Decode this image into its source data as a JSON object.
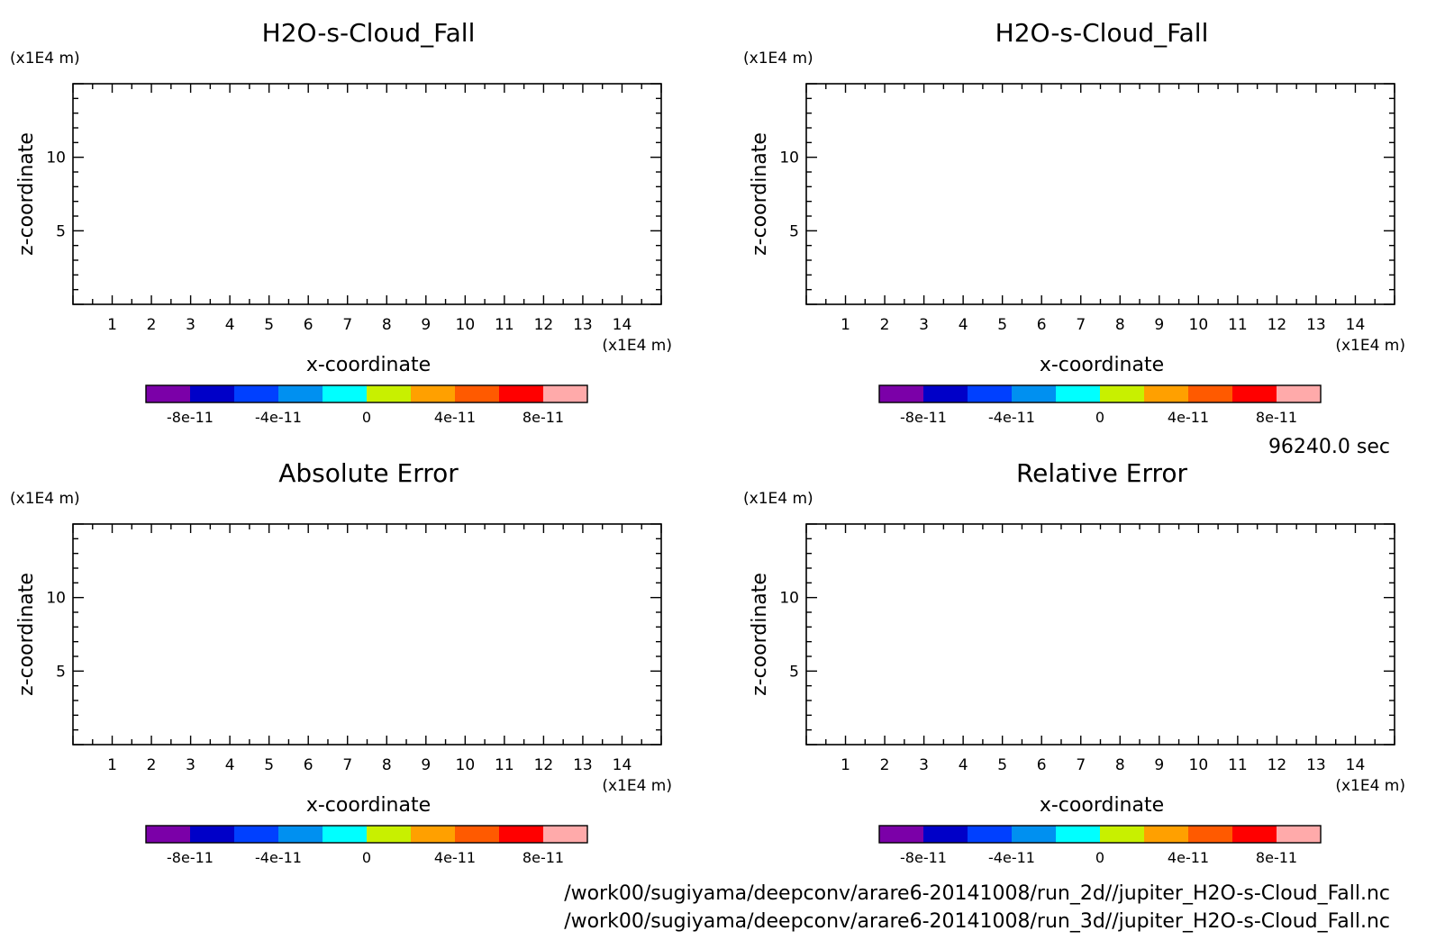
{
  "chart_data": [
    {
      "type": "heatmap",
      "title": "H2O-s-Cloud_Fall",
      "xlabel": "x-coordinate",
      "ylabel": "z-coordinate",
      "x_unit": "(x1E4 m)",
      "y_unit": "(x1E4 m)",
      "xlim": [
        0,
        15
      ],
      "ylim": [
        0,
        15
      ],
      "x_ticks": [
        "1",
        "2",
        "3",
        "4",
        "5",
        "6",
        "7",
        "8",
        "9",
        "10",
        "11",
        "12",
        "13",
        "14"
      ],
      "y_ticks": [
        "5",
        "10"
      ],
      "colorbar_ticks": [
        "-8e-11",
        "-4e-11",
        "0",
        "4e-11",
        "8e-11"
      ],
      "values": []
    },
    {
      "type": "heatmap",
      "title": "H2O-s-Cloud_Fall",
      "xlabel": "x-coordinate",
      "ylabel": "z-coordinate",
      "x_unit": "(x1E4 m)",
      "y_unit": "(x1E4 m)",
      "xlim": [
        0,
        15
      ],
      "ylim": [
        0,
        15
      ],
      "x_ticks": [
        "1",
        "2",
        "3",
        "4",
        "5",
        "6",
        "7",
        "8",
        "9",
        "10",
        "11",
        "12",
        "13",
        "14"
      ],
      "y_ticks": [
        "5",
        "10"
      ],
      "colorbar_ticks": [
        "-8e-11",
        "-4e-11",
        "0",
        "4e-11",
        "8e-11"
      ],
      "values": []
    },
    {
      "type": "heatmap",
      "title": "Absolute Error",
      "xlabel": "x-coordinate",
      "ylabel": "z-coordinate",
      "x_unit": "(x1E4 m)",
      "y_unit": "(x1E4 m)",
      "xlim": [
        0,
        15
      ],
      "ylim": [
        0,
        15
      ],
      "x_ticks": [
        "1",
        "2",
        "3",
        "4",
        "5",
        "6",
        "7",
        "8",
        "9",
        "10",
        "11",
        "12",
        "13",
        "14"
      ],
      "y_ticks": [
        "5",
        "10"
      ],
      "colorbar_ticks": [
        "-8e-11",
        "-4e-11",
        "0",
        "4e-11",
        "8e-11"
      ],
      "values": []
    },
    {
      "type": "heatmap",
      "title": "Relative Error",
      "xlabel": "x-coordinate",
      "ylabel": "z-coordinate",
      "x_unit": "(x1E4 m)",
      "y_unit": "(x1E4 m)",
      "xlim": [
        0,
        15
      ],
      "ylim": [
        0,
        15
      ],
      "x_ticks": [
        "1",
        "2",
        "3",
        "4",
        "5",
        "6",
        "7",
        "8",
        "9",
        "10",
        "11",
        "12",
        "13",
        "14"
      ],
      "y_ticks": [
        "5",
        "10"
      ],
      "colorbar_ticks": [
        "-8e-11",
        "-4e-11",
        "0",
        "4e-11",
        "8e-11"
      ],
      "values": []
    }
  ],
  "colorbar_colors": [
    "#7b00a8",
    "#0000c8",
    "#0040ff",
    "#0090f0",
    "#00ffff",
    "#c8f000",
    "#ffa000",
    "#ff5a00",
    "#ff0000",
    "#ffaaaa"
  ],
  "time_label": "96240.0 sec",
  "footer_paths": [
    "/work00/sugiyama/deepconv/arare6-20141008/run_2d//jupiter_H2O-s-Cloud_Fall.nc",
    "/work00/sugiyama/deepconv/arare6-20141008/run_3d//jupiter_H2O-s-Cloud_Fall.nc"
  ]
}
